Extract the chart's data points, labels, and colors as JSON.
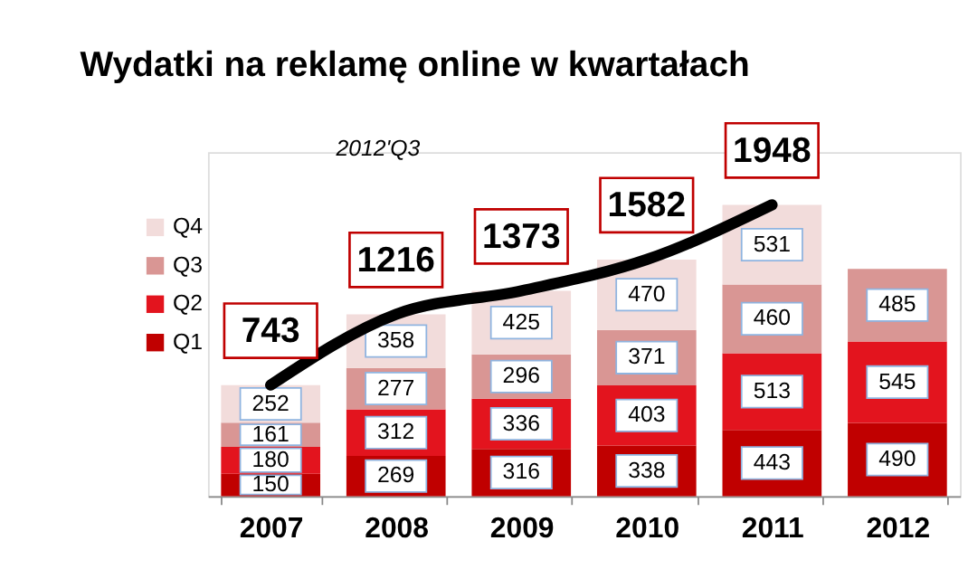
{
  "chart_data": {
    "type": "bar",
    "title": "Wydatki na reklamę online w kwartałach",
    "annotations": [
      "2012'Q3"
    ],
    "categories": [
      "2007",
      "2008",
      "2009",
      "2010",
      "2011",
      "2012"
    ],
    "stacked": true,
    "data_labels": true,
    "legend": "left",
    "grid": false,
    "ylim": [
      0,
      2300
    ],
    "series": [
      {
        "name": "Q1",
        "color": "#c00000",
        "values": [
          150,
          269,
          316,
          338,
          443,
          490
        ]
      },
      {
        "name": "Q2",
        "color": "#e3141e",
        "values": [
          180,
          312,
          336,
          403,
          513,
          545
        ]
      },
      {
        "name": "Q3",
        "color": "#d99694",
        "values": [
          161,
          277,
          296,
          371,
          460,
          485
        ]
      },
      {
        "name": "Q4",
        "color": "#f2dcdb",
        "values": [
          252,
          358,
          425,
          470,
          531,
          null
        ]
      },
      {
        "type": "line",
        "color": "#000000",
        "values": [
          743,
          1216,
          1373,
          1582,
          1948,
          null
        ],
        "value_labels": [
          "743",
          "1216",
          "1373",
          "1582",
          "1948",
          null
        ]
      }
    ]
  }
}
